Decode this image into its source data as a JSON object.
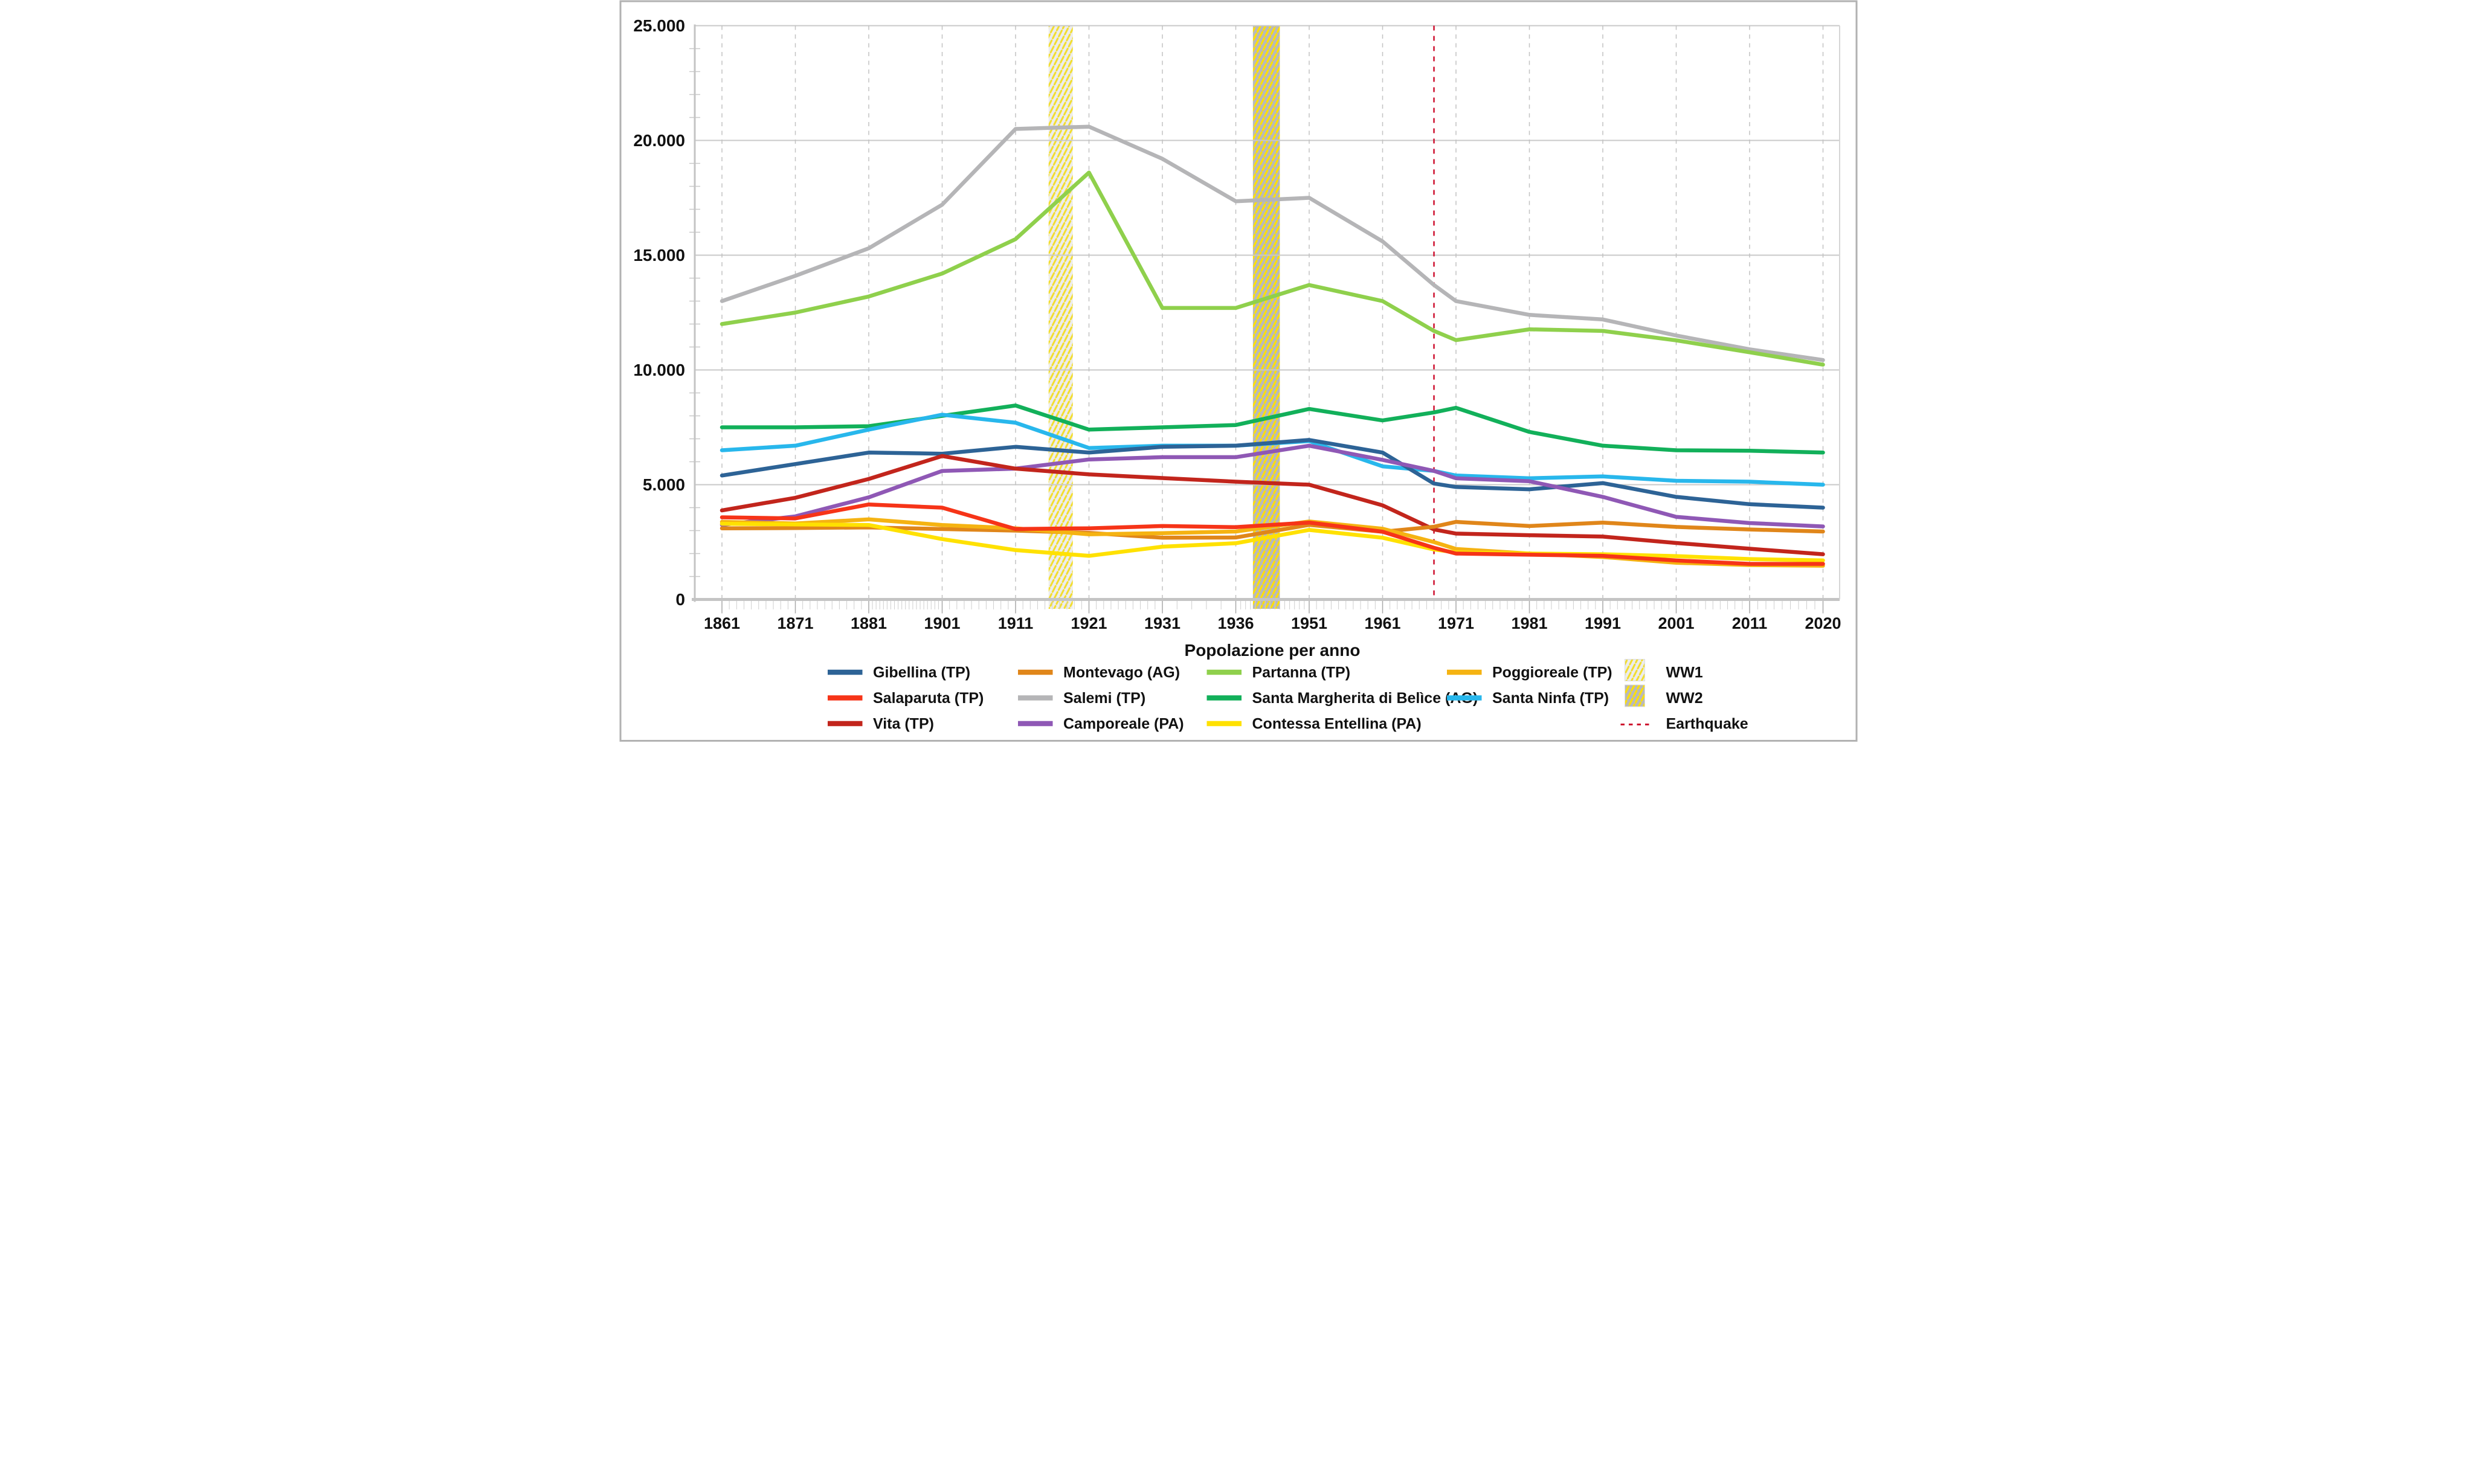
{
  "figure": {
    "background": "#ffffff",
    "border_color": "#b2b2b2",
    "gridline_color": "#c9c9c9",
    "category_gridline_color": "#c2c2c2",
    "axis_color": "#c4c4c4"
  },
  "chart_data": {
    "type": "line",
    "title": "",
    "xlabel": "Popolazione per anno",
    "ylabel": "",
    "ylim": [
      0,
      25000
    ],
    "grid": "horizontal-solid, vertical-dashed at census years, minor ticks yearly (x) and every 1000 (y)",
    "legend_position": "bottom",
    "yticks": [
      {
        "value": 0,
        "label": "0"
      },
      {
        "value": 5000,
        "label": "5.000"
      },
      {
        "value": 10000,
        "label": "10.000"
      },
      {
        "value": 15000,
        "label": "15.000"
      },
      {
        "value": 20000,
        "label": "20.000"
      },
      {
        "value": 25000,
        "label": "25.000"
      }
    ],
    "categories": [
      1861,
      1871,
      1881,
      1901,
      1911,
      1921,
      1931,
      1936,
      1951,
      1961,
      1971,
      1981,
      1991,
      2001,
      2011,
      2020
    ],
    "x_points": [
      1861,
      1871,
      1881,
      1901,
      1911,
      1921,
      1931,
      1936,
      1951,
      1961,
      1968,
      1971,
      1981,
      1991,
      2001,
      2011,
      2020
    ],
    "series": [
      {
        "name": "Gibellina (TP)",
        "key": "gibellina",
        "color": "#2d6396",
        "values": [
          5400,
          5900,
          6400,
          6350,
          6650,
          6400,
          6650,
          6700,
          6950,
          6400,
          5050,
          4900,
          4800,
          5070,
          4470,
          4150,
          4000
        ]
      },
      {
        "name": "Montevago (AG)",
        "key": "montevago",
        "color": "#e0861a",
        "values": [
          3100,
          3110,
          3140,
          3070,
          3000,
          2900,
          2690,
          2700,
          3250,
          2950,
          3170,
          3380,
          3200,
          3350,
          3160,
          3050,
          2960
        ]
      },
      {
        "name": "Partanna (TP)",
        "key": "partanna",
        "color": "#8fd04c",
        "values": [
          12000,
          12500,
          13200,
          14200,
          15700,
          18600,
          12700,
          12700,
          13700,
          13000,
          11700,
          11300,
          11770,
          11700,
          11290,
          10770,
          10230
        ]
      },
      {
        "name": "Poggioreale (TP)",
        "key": "poggioreale",
        "color": "#f5b312",
        "values": [
          3380,
          3310,
          3490,
          3245,
          3100,
          2840,
          2890,
          2960,
          3400,
          3080,
          2500,
          2200,
          2000,
          1850,
          1600,
          1500,
          1470
        ]
      },
      {
        "name": "Salaparuta (TP)",
        "key": "salaparuta",
        "color": "#f63418",
        "values": [
          3580,
          3530,
          4140,
          4000,
          3070,
          3100,
          3200,
          3150,
          3350,
          2950,
          2250,
          2000,
          1950,
          1900,
          1700,
          1550,
          1550
        ]
      },
      {
        "name": "Salemi (TP)",
        "key": "salemi",
        "color": "#b5b5b7",
        "values": [
          13000,
          14100,
          15300,
          17200,
          20500,
          20600,
          19200,
          17350,
          17500,
          15600,
          13700,
          13000,
          12400,
          12200,
          11500,
          10900,
          10430
        ]
      },
      {
        "name": "Santa Margherita di Belìce (AG)",
        "key": "santa-margherita-di-belice",
        "color": "#12b05a",
        "values": [
          7500,
          7500,
          7550,
          8000,
          8450,
          7400,
          7500,
          7600,
          8300,
          7800,
          8150,
          8350,
          7300,
          6700,
          6500,
          6480,
          6400
        ]
      },
      {
        "name": "Santa Ninfa (TP)",
        "key": "santa-ninfa",
        "color": "#28b7ec",
        "values": [
          6500,
          6700,
          7400,
          8050,
          7700,
          6600,
          6700,
          6700,
          6900,
          5800,
          5600,
          5400,
          5280,
          5360,
          5170,
          5130,
          5000
        ]
      },
      {
        "name": "Vita (TP)",
        "key": "vita",
        "color": "#c2251c",
        "values": [
          3880,
          4430,
          5250,
          6250,
          5700,
          5450,
          5290,
          5130,
          5000,
          4100,
          3050,
          2870,
          2800,
          2740,
          2460,
          2210,
          1970
        ]
      },
      {
        "name": "Camporeale (PA)",
        "key": "camporeale",
        "color": "#8f58b5",
        "values": [
          3250,
          3620,
          4450,
          5600,
          5700,
          6100,
          6200,
          6200,
          6700,
          6080,
          5600,
          5280,
          5150,
          4470,
          3600,
          3330,
          3180
        ]
      },
      {
        "name": "Contessa Entellina (PA)",
        "key": "contessa-entellina",
        "color": "#ffe100",
        "values": [
          3300,
          3270,
          3245,
          2630,
          2150,
          1900,
          2300,
          2450,
          3030,
          2690,
          2180,
          2050,
          2000,
          1970,
          1890,
          1760,
          1700
        ]
      }
    ],
    "bands": [
      {
        "label": "WW1",
        "from_year": 1915.5,
        "to_year": 1918.8,
        "fill": "#ededec",
        "hatch_color": "#f2dd2e"
      },
      {
        "label": "WW2",
        "from_year": 1939.5,
        "to_year": 1945.0,
        "fill": "#b9b9b9",
        "hatch_color": "#ffe100"
      }
    ],
    "event_line": {
      "label": "Earthquake",
      "year": 1968,
      "color": "#ce1230"
    },
    "legend": [
      {
        "col": 0,
        "row": 0,
        "type": "line",
        "label": "Gibellina (TP)",
        "color": "#2d6396"
      },
      {
        "col": 0,
        "row": 1,
        "type": "line",
        "label": "Salaparuta (TP)",
        "color": "#f63418"
      },
      {
        "col": 0,
        "row": 2,
        "type": "line",
        "label": "Vita (TP)",
        "color": "#c2251c"
      },
      {
        "col": 1,
        "row": 0,
        "type": "line",
        "label": "Montevago (AG)",
        "color": "#e0861a"
      },
      {
        "col": 1,
        "row": 1,
        "type": "line",
        "label": "Salemi (TP)",
        "color": "#b5b5b7"
      },
      {
        "col": 1,
        "row": 2,
        "type": "line",
        "label": "Camporeale (PA)",
        "color": "#8f58b5"
      },
      {
        "col": 2,
        "row": 0,
        "type": "line",
        "label": "Partanna (TP)",
        "color": "#8fd04c"
      },
      {
        "col": 2,
        "row": 1,
        "type": "line",
        "label": "Santa Margherita di Belìce (AG)",
        "color": "#12b05a"
      },
      {
        "col": 2,
        "row": 2,
        "type": "line",
        "label": "Contessa Entellina (PA)",
        "color": "#ffe100"
      },
      {
        "col": 3,
        "row": 0,
        "type": "line",
        "label": "Poggioreale (TP)",
        "color": "#f5b312"
      },
      {
        "col": 3,
        "row": 1,
        "type": "line",
        "label": "Santa Ninfa (TP)",
        "color": "#28b7ec"
      },
      {
        "col": 4,
        "row": 0,
        "type": "band",
        "label": "WW1",
        "pattern": "hatch-ww1"
      },
      {
        "col": 4,
        "row": 1,
        "type": "band",
        "label": "WW2",
        "pattern": "hatch-ww2"
      },
      {
        "col": 4,
        "row": 2,
        "type": "dash",
        "label": "Earthquake",
        "color": "#ce1230"
      }
    ]
  }
}
